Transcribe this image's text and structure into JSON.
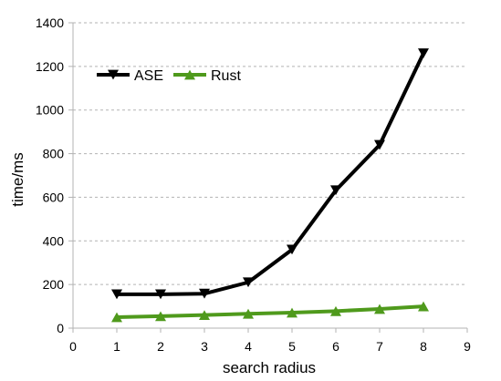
{
  "chart_data": {
    "type": "line",
    "title": "",
    "xlabel": "search radius",
    "ylabel": "time/ms",
    "xlim": [
      0,
      9
    ],
    "ylim": [
      0,
      1400
    ],
    "x_ticks": [
      0,
      1,
      2,
      3,
      4,
      5,
      6,
      7,
      8,
      9
    ],
    "y_ticks": [
      0,
      200,
      400,
      600,
      800,
      1000,
      1200,
      1400
    ],
    "grid": "horizontal dashed",
    "legend_position": "top-left",
    "series": [
      {
        "name": "ASE",
        "color": "#000000",
        "marker": "triangle-down",
        "x": [
          1,
          2,
          3,
          4,
          5,
          6,
          7,
          8
        ],
        "y": [
          155,
          155,
          158,
          210,
          360,
          632,
          840,
          1260
        ]
      },
      {
        "name": "Rust",
        "color": "#4f9a1c",
        "marker": "triangle-up",
        "x": [
          1,
          2,
          3,
          4,
          5,
          6,
          7,
          8
        ],
        "y": [
          50,
          55,
          60,
          66,
          71,
          78,
          88,
          100
        ]
      }
    ]
  }
}
